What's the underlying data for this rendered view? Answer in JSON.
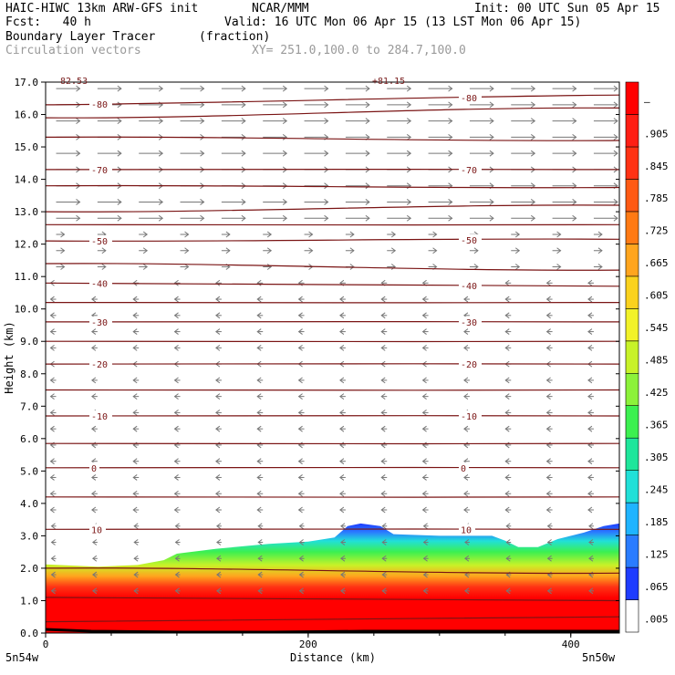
{
  "header": {
    "model": "HAIC-HIWC 13km ARW-GFS init",
    "org": "NCAR/MMM",
    "init": "Init: 00 UTC Sun 05 Apr 15",
    "fcst": "Fcst:   40 h",
    "valid": "Valid: 16 UTC Mon 06 Apr 15 (13 LST Mon 06 Apr 15)",
    "field": "Boundary Layer Tracer",
    "units": "(fraction)",
    "vectors": "Circulation vectors",
    "xy": "XY= 251.0,100.0 to 284.7,100.0"
  },
  "chart_data": {
    "type": "heatmap",
    "xlabel": "Distance (km)",
    "ylabel": "Height (km)",
    "xlim": [
      0,
      437
    ],
    "ylim": [
      0,
      17
    ],
    "x_ticks": [
      "0",
      "200",
      "400"
    ],
    "x_tick_values": [
      0,
      200,
      400
    ],
    "y_ticks": [
      "0.0",
      "1.0",
      "2.0",
      "3.0",
      "4.0",
      "5.0",
      "6.0",
      "7.0",
      "8.0",
      "9.0",
      "10.0",
      "11.0",
      "12.0",
      "13.0",
      "14.0",
      "15.0",
      "16.0",
      "17.0"
    ],
    "y_tick_values": [
      0,
      1,
      2,
      3,
      4,
      5,
      6,
      7,
      8,
      9,
      10,
      11,
      12,
      13,
      14,
      15,
      16,
      17
    ],
    "left_endpoint_label": "5n54w",
    "right_endpoint_label": "5n50w",
    "colorbar": {
      "labels": [
        ".005",
        ".065",
        ".125",
        ".185",
        ".245",
        ".305",
        ".365",
        ".425",
        ".485",
        ".545",
        ".605",
        ".665",
        ".725",
        ".785",
        ".845",
        ".905",
        "–"
      ],
      "colors": [
        "#ffffff",
        "#1e3cff",
        "#2a7cff",
        "#1fb4ff",
        "#21e0d8",
        "#1ee69b",
        "#3cf050",
        "#8cf23a",
        "#c8f228",
        "#f2f228",
        "#fad21e",
        "#ffa51e",
        "#ff7a14",
        "#ff5a14",
        "#ff3214",
        "#ff1e14",
        "#ff0000"
      ]
    },
    "tracer_top_km": [
      [
        0,
        2.12
      ],
      [
        40,
        2.05
      ],
      [
        70,
        2.1
      ],
      [
        90,
        2.25
      ],
      [
        100,
        2.45
      ],
      [
        130,
        2.6
      ],
      [
        170,
        2.75
      ],
      [
        200,
        2.82
      ],
      [
        220,
        2.95
      ],
      [
        230,
        3.3
      ],
      [
        240,
        3.38
      ],
      [
        255,
        3.3
      ],
      [
        265,
        3.05
      ],
      [
        300,
        3.0
      ],
      [
        340,
        3.0
      ],
      [
        350,
        2.85
      ],
      [
        360,
        2.65
      ],
      [
        375,
        2.65
      ],
      [
        390,
        2.9
      ],
      [
        410,
        3.1
      ],
      [
        425,
        3.3
      ],
      [
        437,
        3.38
      ]
    ],
    "contours": [
      {
        "label": "-80",
        "y0": 16.3,
        "y1": 16.6
      },
      {
        "label": "",
        "y0": 15.9,
        "y1": 16.2
      },
      {
        "label": "",
        "y0": 15.3,
        "y1": 15.2
      },
      {
        "label": "-70",
        "y0": 14.3,
        "y1": 14.3
      },
      {
        "label": "",
        "y0": 13.8,
        "y1": 13.75
      },
      {
        "label": "",
        "y0": 13.0,
        "y1": 13.2
      },
      {
        "label": "",
        "y0": 12.6,
        "y1": 12.6
      },
      {
        "label": "-50",
        "y0": 12.1,
        "y1": 12.15
      },
      {
        "label": "",
        "y0": 11.4,
        "y1": 11.2
      },
      {
        "label": "-40",
        "y0": 10.8,
        "y1": 10.7
      },
      {
        "label": "",
        "y0": 10.2,
        "y1": 10.2
      },
      {
        "label": "-30",
        "y0": 9.6,
        "y1": 9.6
      },
      {
        "label": "",
        "y0": 9.0,
        "y1": 9.0
      },
      {
        "label": "-20",
        "y0": 8.3,
        "y1": 8.3
      },
      {
        "label": "",
        "y0": 7.5,
        "y1": 7.5
      },
      {
        "label": "-10",
        "y0": 6.7,
        "y1": 6.7
      },
      {
        "label": "",
        "y0": 5.85,
        "y1": 5.85
      },
      {
        "label": "0",
        "y0": 5.1,
        "y1": 5.1
      },
      {
        "label": "",
        "y0": 4.2,
        "y1": 4.2
      },
      {
        "label": "10",
        "y0": 3.2,
        "y1": 3.2
      },
      {
        "label": "",
        "y0": 2.0,
        "y1": 1.85
      },
      {
        "label": "",
        "y0": 1.1,
        "y1": 1.0
      },
      {
        "label": "",
        "y0": 0.35,
        "y1": 0.5
      }
    ],
    "annotations": [
      "82.53",
      "+81.15"
    ]
  }
}
